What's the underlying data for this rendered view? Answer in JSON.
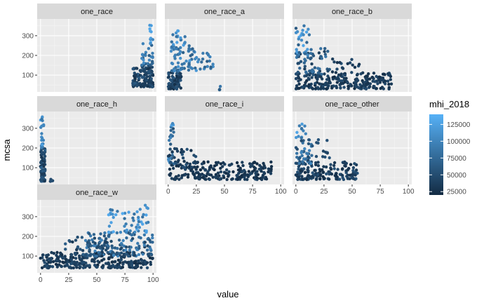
{
  "chart_data": {
    "type": "scatter",
    "facet_by": "race variable",
    "x_label": "value",
    "y_label": "mcsa",
    "x_ticks": [
      0,
      25,
      50,
      75,
      100
    ],
    "y_ticks": [
      100,
      200,
      300
    ],
    "xlim": [
      -3,
      103
    ],
    "ylim": [
      15,
      385
    ],
    "grid": true,
    "legend": {
      "title": "mhi_2018",
      "position": "right",
      "ticks": [
        25000,
        50000,
        75000,
        100000,
        125000
      ],
      "tick_labels": [
        "25000",
        "50000",
        "75000",
        "100000",
        "125000"
      ],
      "range": [
        20000,
        140000
      ],
      "color_low": "#132B43",
      "color_high": "#56B1F7"
    },
    "panels": [
      {
        "name": "one_race",
        "clouds": [
          {
            "x": [
              82,
              100
            ],
            "y": [
              40,
              150
            ],
            "n": 120,
            "m": [
              25000,
              60000
            ]
          },
          {
            "x": [
              90,
              100
            ],
            "y": [
              150,
              260
            ],
            "n": 30,
            "m": [
              60000,
              110000
            ]
          },
          {
            "x": [
              96,
              100
            ],
            "y": [
              260,
              370
            ],
            "n": 10,
            "m": [
              100000,
              135000
            ]
          }
        ]
      },
      {
        "name": "one_race_a",
        "clouds": [
          {
            "x": [
              0,
              12
            ],
            "y": [
              30,
              120
            ],
            "n": 80,
            "m": [
              25000,
              60000
            ]
          },
          {
            "x": [
              2,
              25
            ],
            "y": [
              120,
              250
            ],
            "n": 60,
            "m": [
              60000,
              120000
            ]
          },
          {
            "x": [
              3,
              15
            ],
            "y": [
              240,
              360
            ],
            "n": 20,
            "m": [
              80000,
              130000
            ]
          },
          {
            "x": [
              25,
              40
            ],
            "y": [
              130,
              220
            ],
            "n": 20,
            "m": [
              60000,
              110000
            ]
          },
          {
            "x": [
              43,
              48
            ],
            "y": [
              25,
              45
            ],
            "n": 4,
            "m": [
              60000,
              90000
            ]
          }
        ]
      },
      {
        "name": "one_race_b",
        "clouds": [
          {
            "x": [
              0,
              85
            ],
            "y": [
              30,
              110
            ],
            "n": 220,
            "m": [
              20000,
              50000
            ]
          },
          {
            "x": [
              0,
              30
            ],
            "y": [
              100,
              240
            ],
            "n": 60,
            "m": [
              30000,
              90000
            ]
          },
          {
            "x": [
              0,
              12
            ],
            "y": [
              200,
              370
            ],
            "n": 30,
            "m": [
              60000,
              135000
            ]
          },
          {
            "x": [
              25,
              60
            ],
            "y": [
              110,
              200
            ],
            "n": 20,
            "m": [
              25000,
              55000
            ]
          }
        ]
      },
      {
        "name": "one_race_h",
        "clouds": [
          {
            "x": [
              0,
              4
            ],
            "y": [
              30,
              200
            ],
            "n": 80,
            "m": [
              25000,
              70000
            ]
          },
          {
            "x": [
              0,
              3
            ],
            "y": [
              200,
              370
            ],
            "n": 20,
            "m": [
              80000,
              135000
            ]
          },
          {
            "x": [
              8,
              12
            ],
            "y": [
              30,
              50
            ],
            "n": 4,
            "m": [
              40000,
              60000
            ]
          }
        ]
      },
      {
        "name": "one_race_i",
        "clouds": [
          {
            "x": [
              0,
              92
            ],
            "y": [
              40,
              130
            ],
            "n": 220,
            "m": [
              20000,
              45000
            ]
          },
          {
            "x": [
              0,
              5
            ],
            "y": [
              120,
              340
            ],
            "n": 25,
            "m": [
              50000,
              130000
            ]
          },
          {
            "x": [
              0,
              25
            ],
            "y": [
              100,
              200
            ],
            "n": 30,
            "m": [
              25000,
              55000
            ]
          }
        ]
      },
      {
        "name": "one_race_other",
        "clouds": [
          {
            "x": [
              0,
              55
            ],
            "y": [
              40,
              130
            ],
            "n": 160,
            "m": [
              20000,
              55000
            ]
          },
          {
            "x": [
              0,
              15
            ],
            "y": [
              120,
              250
            ],
            "n": 40,
            "m": [
              40000,
              110000
            ]
          },
          {
            "x": [
              0,
              10
            ],
            "y": [
              250,
              340
            ],
            "n": 12,
            "m": [
              80000,
              130000
            ]
          },
          {
            "x": [
              10,
              30
            ],
            "y": [
              150,
              250
            ],
            "n": 15,
            "m": [
              40000,
              60000
            ]
          }
        ]
      },
      {
        "name": "one_race_w",
        "clouds": [
          {
            "x": [
              0,
              100
            ],
            "y": [
              40,
              120
            ],
            "n": 260,
            "m": [
              20000,
              50000
            ]
          },
          {
            "x": [
              40,
              100
            ],
            "y": [
              100,
              220
            ],
            "n": 150,
            "m": [
              40000,
              100000
            ]
          },
          {
            "x": [
              60,
              97
            ],
            "y": [
              220,
              340
            ],
            "n": 50,
            "m": [
              80000,
              135000
            ]
          },
          {
            "x": [
              20,
              60
            ],
            "y": [
              100,
              200
            ],
            "n": 40,
            "m": [
              30000,
              70000
            ]
          },
          {
            "x": [
              92,
              96
            ],
            "y": [
              330,
              375
            ],
            "n": 3,
            "m": [
              110000,
              135000
            ]
          }
        ]
      }
    ]
  }
}
